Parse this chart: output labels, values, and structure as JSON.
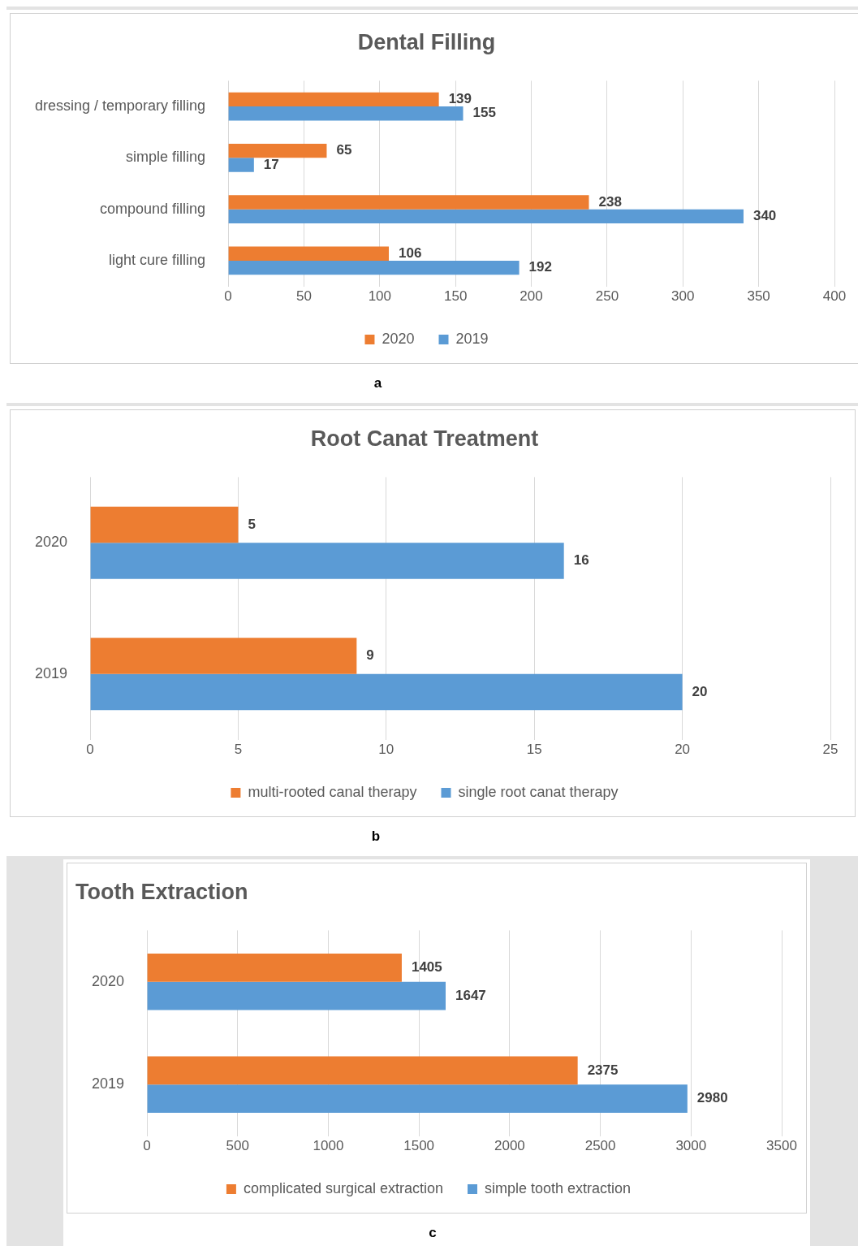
{
  "chart_data": [
    {
      "type": "bar",
      "orientation": "horizontal",
      "title": "Dental Filling",
      "categories": [
        "dressing / temporary filling",
        "simple filling",
        "compound filling",
        "light cure filling"
      ],
      "series": [
        {
          "name": "2020",
          "color": "#ed7d31",
          "values": [
            139,
            65,
            238,
            106
          ]
        },
        {
          "name": "2019",
          "color": "#5b9bd5",
          "values": [
            155,
            17,
            340,
            192
          ]
        }
      ],
      "xlim": [
        0,
        400
      ],
      "xticks": [
        0,
        50,
        100,
        150,
        200,
        250,
        300,
        350,
        400
      ],
      "grid": "x",
      "legend": "bottom",
      "data_labels": true,
      "annotations": [
        "a"
      ]
    },
    {
      "type": "bar",
      "orientation": "horizontal",
      "title": "Root Canat Treatment",
      "categories": [
        "2020",
        "2019"
      ],
      "series": [
        {
          "name": "multi-rooted canal therapy",
          "color": "#ed7d31",
          "values": [
            5,
            9
          ]
        },
        {
          "name": "single root canat therapy",
          "color": "#5b9bd5",
          "values": [
            16,
            20
          ]
        }
      ],
      "xlim": [
        0,
        25
      ],
      "xticks": [
        0,
        5,
        10,
        15,
        20,
        25
      ],
      "grid": "x",
      "legend": "bottom",
      "data_labels": true,
      "annotations": [
        "b"
      ]
    },
    {
      "type": "bar",
      "orientation": "horizontal",
      "title": "Tooth Extraction",
      "categories": [
        "2020",
        "2019"
      ],
      "series": [
        {
          "name": "complicated surgical extraction",
          "color": "#ed7d31",
          "values": [
            1405,
            2375
          ]
        },
        {
          "name": "simple tooth extraction",
          "color": "#5b9bd5",
          "values": [
            1647,
            2980
          ]
        }
      ],
      "xlim": [
        0,
        3500
      ],
      "xticks": [
        0,
        500,
        1000,
        1500,
        2000,
        2500,
        3000,
        3500
      ],
      "grid": "x",
      "legend": "bottom",
      "data_labels": true,
      "annotations": [
        "c"
      ]
    }
  ]
}
